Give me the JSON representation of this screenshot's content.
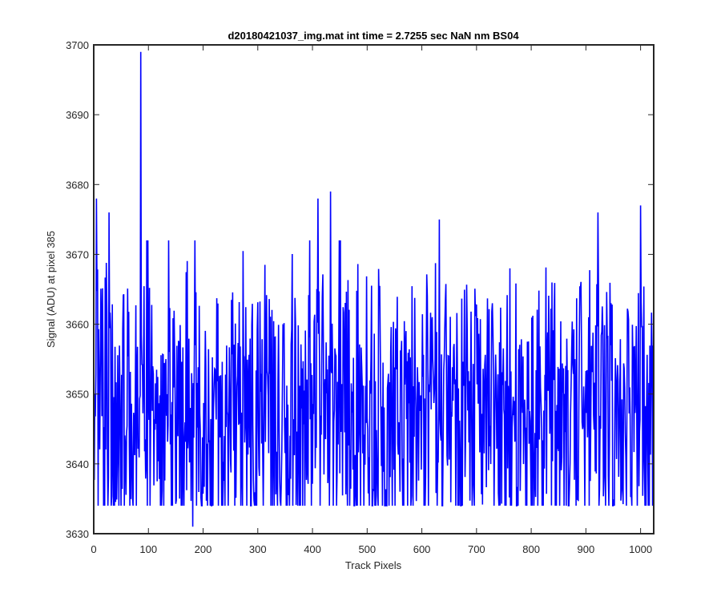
{
  "chart_data": {
    "type": "line",
    "title": "d20180421037_img.mat int time = 2.7255 sec  NaN nm BS04",
    "xlabel": "Track Pixels",
    "ylabel": "Signal (ADU) at pixel 385",
    "xlim": [
      0,
      1024
    ],
    "ylim": [
      3630,
      3700
    ],
    "xticks": [
      0,
      100,
      200,
      300,
      400,
      500,
      600,
      700,
      800,
      900,
      1000
    ],
    "yticks": [
      3630,
      3640,
      3650,
      3660,
      3670,
      3680,
      3690,
      3700
    ],
    "grid": false,
    "legend": "none",
    "line_color": "#0000ff",
    "series": [
      {
        "points_per_step": 4,
        "x_start": 1,
        "x_step": 1,
        "values": [
          3648,
          3678,
          3655,
          3661,
          3657,
          3664,
          3647,
          3659,
          3639,
          3658,
          3649,
          3654,
          3652,
          3666,
          3643,
          3655,
          3650,
          3645,
          3654,
          3663,
          3648,
          3656,
          3660,
          3652,
          3699,
          3642,
          3662,
          3655,
          3658,
          3649,
          3664,
          3651,
          3657,
          3645,
          3670,
          3653,
          3659,
          3647,
          3661,
          3650,
          3656,
          3641,
          3665,
          3653,
          3658,
          3648,
          3675,
          3652,
          3658,
          3644,
          3663,
          3650,
          3646,
          3631,
          3660,
          3651,
          3672,
          3648,
          3656,
          3643,
          3661,
          3653,
          3647,
          3657,
          3662,
          3649,
          3655,
          3645,
          3666,
          3652,
          3658,
          3646,
          3660,
          3644,
          3663,
          3651,
          3656,
          3648,
          3665,
          3653,
          3659,
          3645,
          3662,
          3650,
          3657,
          3648,
          3664,
          3652,
          3660,
          3646,
          3667,
          3651,
          3656,
          3638,
          3663,
          3651,
          3658,
          3646,
          3668,
          3653,
          3660,
          3647,
          3662,
          3650,
          3666,
          3652,
          3658,
          3646,
          3663,
          3655,
          3659,
          3650,
          3678,
          3649,
          3657,
          3645,
          3662,
          3651,
          3659,
          3646,
          3666,
          3652,
          3660,
          3647,
          3663,
          3653,
          3658,
          3644,
          3661,
          3649,
          3677,
          3651,
          3658,
          3645,
          3664,
          3652,
          3657,
          3641,
          3664,
          3651,
          3659,
          3646,
          3662,
          3653,
          3665,
          3647,
          3660,
          3652,
          3664,
          3650,
          3658,
          3646,
          3663,
          3654,
          3660,
          3648,
          3666,
          3651,
          3657,
          3644,
          3663,
          3652,
          3660,
          3646,
          3664,
          3652,
          3658,
          3645,
          3662,
          3650,
          3665,
          3653,
          3659,
          3647,
          3663,
          3651,
          3658,
          3645,
          3662,
          3653,
          3660,
          3648,
          3664,
          3651,
          3657,
          3645,
          3663,
          3652,
          3659,
          3647,
          3664,
          3650,
          3658,
          3645,
          3662,
          3652,
          3660,
          3648,
          3665,
          3651,
          3657,
          3646,
          3663,
          3653,
          3659,
          3647,
          3664,
          3651,
          3658,
          3645,
          3662,
          3653,
          3660,
          3648,
          3665,
          3652,
          3658,
          3645,
          3663,
          3650,
          3660,
          3648,
          3662,
          3651,
          3659,
          3647,
          3663,
          3652,
          3658,
          3646,
          3664,
          3650,
          3660,
          3648,
          3661,
          3652,
          3657,
          3643,
          3662,
          3650,
          3658,
          3647,
          3662,
          3651,
          3657,
          3645,
          3660,
          3652,
          3658,
          3646,
          3662,
          3651,
          3659,
          3647,
          3663,
          3652,
          3657,
          3644,
          3661,
          3651,
          3658,
          3646,
          3664,
          3651,
          3658,
          3646,
          3663,
          3652,
          3659,
          3647,
          3662,
          3650,
          3658,
          3645,
          3663,
          3652,
          3660,
          3647,
          3664,
          3651,
          3657,
          3643,
          3661,
          3651,
          3659,
          3647,
          3664,
          3651
        ]
      }
    ],
    "highlight_points": [
      {
        "x": 5,
        "y": 3678
      },
      {
        "x": 28,
        "y": 3676
      },
      {
        "x": 86,
        "y": 3699
      },
      {
        "x": 181,
        "y": 3631
      },
      {
        "x": 410,
        "y": 3678
      },
      {
        "x": 433,
        "y": 3679
      },
      {
        "x": 632,
        "y": 3675
      },
      {
        "x": 773,
        "y": 3634
      },
      {
        "x": 922,
        "y": 3676
      },
      {
        "x": 1000,
        "y": 3677
      },
      {
        "x": 1022,
        "y": 3634
      }
    ]
  }
}
